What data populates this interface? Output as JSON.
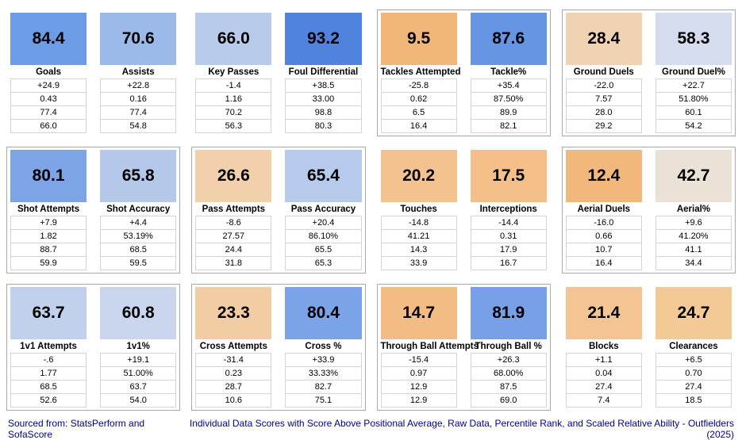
{
  "footer": {
    "source": "Sourced from: StatsPerform and SofaScore",
    "caption": "Individual Data Scores with Score Above Positional Average, Raw Data, Percentile Rank, and Scaled Relative Ability - Outfielders (2025)"
  },
  "palette": {
    "footer_text": "#00008B",
    "group_border": "#a9a9a9",
    "row_border": "#d4d4d4",
    "score_text": "#000000",
    "background": "#ffffff"
  },
  "chart_data": {
    "type": "table",
    "title": "Individual Data Scores with Score Above Positional Average, Raw Data, Percentile Rank, and Scaled Relative Ability - Outfielders (2025)",
    "source": "Sourced from: StatsPerform and SofaScore",
    "row_order": [
      "Score Above Positional Average",
      "Raw Data",
      "Percentile Rank",
      "Scaled Relative Ability"
    ],
    "color_scale": "diverging orange (low score) to blue (high score)",
    "metrics": [
      {
        "label": "Goals",
        "score": "84.4",
        "color": "#6d9ce6",
        "values": [
          "+24.9",
          "0.43",
          "77.4",
          "66.0"
        ]
      },
      {
        "label": "Assists",
        "score": "70.6",
        "color": "#9cbae9",
        "values": [
          "+22.8",
          "0.16",
          "77.4",
          "54.8"
        ]
      },
      {
        "label": "Key Passes",
        "score": "66.0",
        "color": "#b8cbea",
        "values": [
          "-1.4",
          "1.16",
          "70.2",
          "56.3"
        ]
      },
      {
        "label": "Foul Differential",
        "score": "93.2",
        "color": "#5083dd",
        "values": [
          "+38.5",
          "33.00",
          "98.8",
          "80.3"
        ]
      },
      {
        "label": "Tackles Attempted",
        "score": "9.5",
        "color": "#f1b678",
        "values": [
          "-25.8",
          "0.62",
          "6.5",
          "16.4"
        ]
      },
      {
        "label": "Tackle%",
        "score": "87.6",
        "color": "#6695e4",
        "values": [
          "+35.4",
          "87.50%",
          "89.9",
          "82.1"
        ]
      },
      {
        "label": "Ground Duels",
        "score": "28.4",
        "color": "#f0d3b3",
        "values": [
          "-22.0",
          "7.57",
          "28.0",
          "29.2"
        ]
      },
      {
        "label": "Ground Duel%",
        "score": "58.3",
        "color": "#d4dcee",
        "values": [
          "+22.7",
          "51.80%",
          "60.1",
          "54.2"
        ]
      },
      {
        "label": "Shot Attempts",
        "score": "80.1",
        "color": "#7ca4e7",
        "values": [
          "+7.9",
          "1.82",
          "88.7",
          "59.9"
        ]
      },
      {
        "label": "Shot Accuracy",
        "score": "65.8",
        "color": "#b4c8ea",
        "values": [
          "+4.4",
          "53.19%",
          "68.5",
          "59.5"
        ]
      },
      {
        "label": "Pass Attempts",
        "score": "26.6",
        "color": "#f1d0ab",
        "values": [
          "-8.6",
          "27.57",
          "24.4",
          "31.8"
        ]
      },
      {
        "label": "Pass Accuracy",
        "score": "65.4",
        "color": "#b6caeb",
        "values": [
          "+20.4",
          "86.10%",
          "65.5",
          "65.3"
        ]
      },
      {
        "label": "Touches",
        "score": "20.2",
        "color": "#f4c28f",
        "values": [
          "-14.8",
          "41.21",
          "14.3",
          "33.9"
        ]
      },
      {
        "label": "Interceptions",
        "score": "17.5",
        "color": "#f4bf89",
        "values": [
          "-14.4",
          "0.31",
          "17.9",
          "16.7"
        ]
      },
      {
        "label": "Aerial Duels",
        "score": "12.4",
        "color": "#f2b87b",
        "values": [
          "-16.0",
          "0.66",
          "10.7",
          "16.4"
        ]
      },
      {
        "label": "Aerial%",
        "score": "42.7",
        "color": "#eae2d7",
        "values": [
          "+9.6",
          "41.20%",
          "41.1",
          "34.4"
        ]
      },
      {
        "label": "1v1 Attempts",
        "score": "63.7",
        "color": "#c1d0eb",
        "values": [
          "-.6",
          "1.77",
          "68.5",
          "52.6"
        ]
      },
      {
        "label": "1v1%",
        "score": "60.8",
        "color": "#cad6ee",
        "values": [
          "+19.1",
          "51.00%",
          "63.7",
          "54.0"
        ]
      },
      {
        "label": "Cross Attempts",
        "score": "23.3",
        "color": "#f2cca2",
        "values": [
          "-31.4",
          "0.23",
          "28.7",
          "10.6"
        ]
      },
      {
        "label": "Cross %",
        "score": "80.4",
        "color": "#7ba3e7",
        "values": [
          "+33.9",
          "33.33%",
          "82.7",
          "75.1"
        ]
      },
      {
        "label": "Through Ball Attempts",
        "score": "14.7",
        "color": "#f3bc84",
        "values": [
          "-15.4",
          "0.97",
          "12.9",
          "12.9"
        ]
      },
      {
        "label": "Through Ball %",
        "score": "81.9",
        "color": "#78a0e6",
        "values": [
          "+26.3",
          "68.00%",
          "87.5",
          "69.0"
        ]
      },
      {
        "label": "Blocks",
        "score": "21.4",
        "color": "#f4c593",
        "values": [
          "+1.1",
          "0.04",
          "27.4",
          "7.4"
        ]
      },
      {
        "label": "Clearances",
        "score": "24.7",
        "color": "#f3c996",
        "values": [
          "+6.5",
          "0.70",
          "27.4",
          "18.5"
        ]
      }
    ]
  }
}
